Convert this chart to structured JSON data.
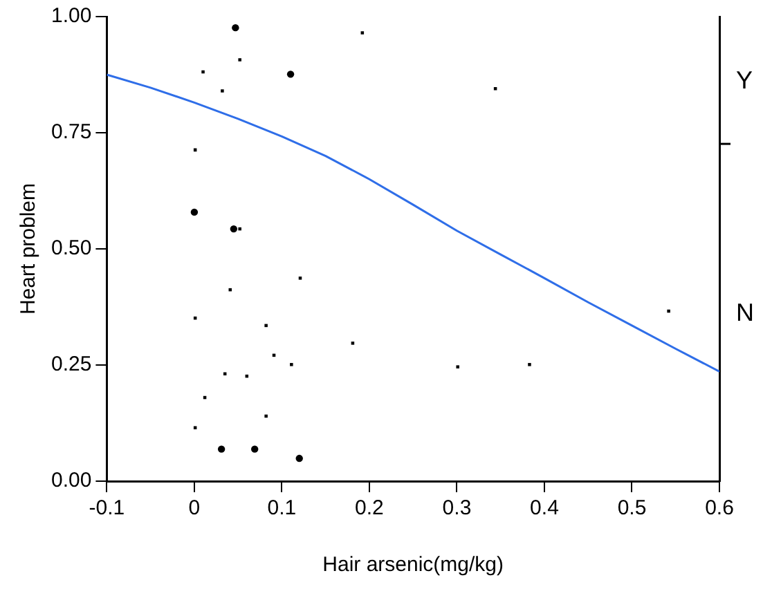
{
  "chart_data": {
    "type": "scatter",
    "xlabel": "Hair arsenic(mg/kg)",
    "ylabel": "Heart problem",
    "grid": false,
    "legend": false,
    "xlim": [
      -0.1,
      0.6
    ],
    "xticks": [
      -0.1,
      0,
      0.1,
      0.2,
      0.3,
      0.4,
      0.5,
      0.6
    ],
    "ylim": [
      0,
      1
    ],
    "yticks": [
      {
        "value": 0,
        "label": "0.00"
      },
      {
        "value": 0.25,
        "label": "0.25"
      },
      {
        "value": 0.5,
        "label": "0.50"
      },
      {
        "value": 0.75,
        "label": "0.75"
      },
      {
        "value": 1,
        "label": "1.00"
      }
    ],
    "annotations": [
      "Y",
      "N"
    ],
    "series": [
      {
        "marker": "circle",
        "color": "#000000",
        "x": [
          0.047,
          0.11,
          0,
          0.045,
          0.031,
          0.069,
          0.12
        ],
        "values": [
          0.976,
          0.876,
          0.579,
          0.543,
          0.069,
          0.069,
          0.049
        ]
      },
      {
        "marker": "square",
        "color": "#000000",
        "x": [
          0.192,
          0.052,
          0.01,
          0.032,
          0.001,
          0.052,
          0.344,
          0.542,
          0.301,
          0.383,
          0.121,
          0.041,
          0.001,
          0.082,
          0.181,
          0.091,
          0.111,
          0.035,
          0.06,
          0.012,
          0.082,
          0.001
        ],
        "values": [
          0.965,
          0.907,
          0.881,
          0.84,
          0.713,
          0.543,
          0.845,
          0.366,
          0.246,
          0.251,
          0.437,
          0.412,
          0.351,
          0.335,
          0.297,
          0.271,
          0.251,
          0.231,
          0.226,
          0.18,
          0.14,
          0.115
        ]
      },
      {
        "type": "line",
        "marker": "none",
        "color": "#2f6ee8",
        "x": [
          -0.1,
          -0.05,
          0,
          0.05,
          0.1,
          0.15,
          0.2,
          0.25,
          0.3,
          0.35,
          0.4,
          0.45,
          0.5,
          0.55,
          0.6
        ],
        "values": [
          0.875,
          0.847,
          0.815,
          0.78,
          0.742,
          0.7,
          0.65,
          0.595,
          0.539,
          0.488,
          0.437,
          0.385,
          0.335,
          0.285,
          0.236
        ]
      }
    ]
  }
}
